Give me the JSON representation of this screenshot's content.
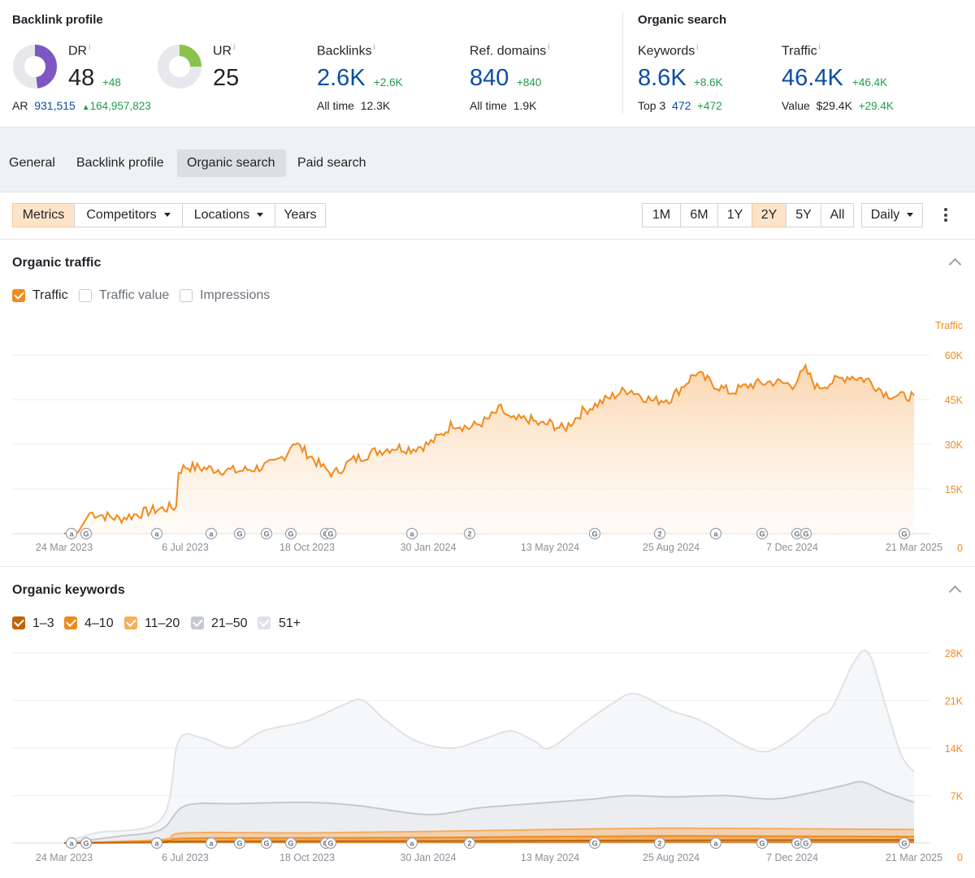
{
  "backlink_profile": {
    "title": "Backlink profile",
    "dr": {
      "label": "DR",
      "info": "i",
      "value": "48",
      "delta": "+48",
      "fraction": 0.48,
      "color": "#7e57c2"
    },
    "ur": {
      "label": "UR",
      "info": "i",
      "value": "25",
      "fraction": 0.25,
      "color": "#8bc34a"
    },
    "ar": {
      "label": "AR",
      "value": "931,515",
      "delta": "164,957,823"
    },
    "backlinks": {
      "label": "Backlinks",
      "info": "i",
      "value": "2.6K",
      "delta": "+2.6K",
      "sub_label": "All time",
      "sub_value": "12.3K"
    },
    "ref_domains": {
      "label": "Ref. domains",
      "info": "i",
      "value": "840",
      "delta": "+840",
      "sub_label": "All time",
      "sub_value": "1.9K"
    }
  },
  "organic_search": {
    "title": "Organic search",
    "keywords": {
      "label": "Keywords",
      "info": "i",
      "value": "8.6K",
      "delta": "+8.6K",
      "sub_label": "Top 3",
      "sub_value": "472",
      "sub_delta": "+472"
    },
    "traffic": {
      "label": "Traffic",
      "info": "i",
      "value": "46.4K",
      "delta": "+46.4K",
      "sub_label": "Value",
      "sub_value": "$29.4K",
      "sub_delta": "+29.4K"
    }
  },
  "tabs": [
    "General",
    "Backlink profile",
    "Organic search",
    "Paid search"
  ],
  "active_tab": "Organic search",
  "toolbar": {
    "metrics": "Metrics",
    "competitors": "Competitors",
    "locations": "Locations",
    "years": "Years",
    "ranges": [
      "1M",
      "6M",
      "1Y",
      "2Y",
      "5Y",
      "All"
    ],
    "active_range": "2Y",
    "interval": "Daily"
  },
  "organic_traffic": {
    "title": "Organic traffic",
    "checks": [
      {
        "label": "Traffic",
        "checked": true,
        "color": "#f28a1e"
      },
      {
        "label": "Traffic value",
        "checked": false
      },
      {
        "label": "Impressions",
        "checked": false
      }
    ]
  },
  "organic_keywords": {
    "title": "Organic keywords",
    "checks": [
      {
        "label": "1–3",
        "checked": true,
        "color": "#c0650c"
      },
      {
        "label": "4–10",
        "checked": true,
        "color": "#f08a1c"
      },
      {
        "label": "11–20",
        "checked": true,
        "color": "#f7ad5e"
      },
      {
        "label": "21–50",
        "checked": true,
        "color": "#c4c9d1"
      },
      {
        "label": "51+",
        "checked": true,
        "color": "#dfe2e7"
      }
    ]
  },
  "x_ticks": [
    "24 Mar 2023",
    "6 Jul 2023",
    "18 Oct 2023",
    "30 Jan 2024",
    "13 May 2024",
    "25 Aug 2024",
    "7 Dec 2024",
    "21 Mar 2025"
  ],
  "markers": [
    "a",
    "G",
    "a",
    "a",
    "G",
    "G",
    "G",
    "G",
    "G",
    "a",
    "2",
    "G",
    "2",
    "a",
    "G",
    "G",
    "G",
    "G"
  ],
  "chart_data": [
    {
      "type": "area",
      "title": "Organic traffic",
      "series": [
        {
          "name": "Traffic",
          "color": "#f28a1e",
          "points": [
            [
              "2023-03-24",
              0
            ],
            [
              "2023-04-05",
              500
            ],
            [
              "2023-04-15",
              7000
            ],
            [
              "2023-04-28",
              6000
            ],
            [
              "2023-05-10",
              5000
            ],
            [
              "2023-05-25",
              6500
            ],
            [
              "2023-06-10",
              8000
            ],
            [
              "2023-06-28",
              9000
            ],
            [
              "2023-06-30",
              21000
            ],
            [
              "2023-07-06",
              22500
            ],
            [
              "2023-07-20",
              22000
            ],
            [
              "2023-08-05",
              21500
            ],
            [
              "2023-08-20",
              21000
            ],
            [
              "2023-09-05",
              22000
            ],
            [
              "2023-09-20",
              23500
            ],
            [
              "2023-10-01",
              27000
            ],
            [
              "2023-10-06",
              31000
            ],
            [
              "2023-10-18",
              27000
            ],
            [
              "2023-11-01",
              22000
            ],
            [
              "2023-11-10",
              20000
            ],
            [
              "2023-11-25",
              24500
            ],
            [
              "2023-12-15",
              27500
            ],
            [
              "2024-01-01",
              29000
            ],
            [
              "2024-01-15",
              28500
            ],
            [
              "2024-01-30",
              30000
            ],
            [
              "2024-02-10",
              33000
            ],
            [
              "2024-02-20",
              37000
            ],
            [
              "2024-03-05",
              35500
            ],
            [
              "2024-03-20",
              38000
            ],
            [
              "2024-04-01",
              42000
            ],
            [
              "2024-04-10",
              38000
            ],
            [
              "2024-04-25",
              38500
            ],
            [
              "2024-05-05",
              36500
            ],
            [
              "2024-05-13",
              37000
            ],
            [
              "2024-05-25",
              35000
            ],
            [
              "2024-06-10",
              41000
            ],
            [
              "2024-06-25",
              44000
            ],
            [
              "2024-07-10",
              47000
            ],
            [
              "2024-07-20",
              48500
            ],
            [
              "2024-08-01",
              46000
            ],
            [
              "2024-08-10",
              44500
            ],
            [
              "2024-08-25",
              45500
            ],
            [
              "2024-09-05",
              50000
            ],
            [
              "2024-09-15",
              54000
            ],
            [
              "2024-10-01",
              50000
            ],
            [
              "2024-10-15",
              47500
            ],
            [
              "2024-11-01",
              50000
            ],
            [
              "2024-11-20",
              51000
            ],
            [
              "2024-12-07",
              50000
            ],
            [
              "2024-12-18",
              55000
            ],
            [
              "2024-12-28",
              49000
            ],
            [
              "2025-01-10",
              51000
            ],
            [
              "2025-01-25",
              53000
            ],
            [
              "2025-02-10",
              51500
            ],
            [
              "2025-02-25",
              47000
            ],
            [
              "2025-03-10",
              46000
            ],
            [
              "2025-03-21",
              46400
            ]
          ]
        }
      ],
      "x_ticks": [
        "24 Mar 2023",
        "6 Jul 2023",
        "18 Oct 2023",
        "30 Jan 2024",
        "13 May 2024",
        "25 Aug 2024",
        "7 Dec 2024",
        "21 Mar 2025"
      ],
      "y_ticks": [
        "0",
        "15K",
        "30K",
        "45K",
        "60K"
      ],
      "ylabel": "Traffic",
      "ylim": [
        0,
        60000
      ],
      "grid": true
    },
    {
      "type": "area",
      "title": "Organic keywords",
      "series": [
        {
          "name": "51+",
          "color": "#dfe2e7",
          "points": [
            [
              "2023-03-24",
              0
            ],
            [
              "2023-04-20",
              1500
            ],
            [
              "2023-06-15",
              3500
            ],
            [
              "2023-06-30",
              15000
            ],
            [
              "2023-07-20",
              15500
            ],
            [
              "2023-08-15",
              14000
            ],
            [
              "2023-09-10",
              16500
            ],
            [
              "2023-10-18",
              18000
            ],
            [
              "2023-11-20",
              20500
            ],
            [
              "2023-12-05",
              21000
            ],
            [
              "2023-12-25",
              18000
            ],
            [
              "2024-01-20",
              15000
            ],
            [
              "2024-02-20",
              14000
            ],
            [
              "2024-03-20",
              15500
            ],
            [
              "2024-04-10",
              16500
            ],
            [
              "2024-04-30",
              15000
            ],
            [
              "2024-05-13",
              14000
            ],
            [
              "2024-06-10",
              17500
            ],
            [
              "2024-07-05",
              20500
            ],
            [
              "2024-07-25",
              22000
            ],
            [
              "2024-08-25",
              19500
            ],
            [
              "2024-09-20",
              18000
            ],
            [
              "2024-10-25",
              14500
            ],
            [
              "2024-11-15",
              13500
            ],
            [
              "2024-12-07",
              15500
            ],
            [
              "2024-12-28",
              18500
            ],
            [
              "2025-01-10",
              20000
            ],
            [
              "2025-01-28",
              26500
            ],
            [
              "2025-02-10",
              28000
            ],
            [
              "2025-02-25",
              20000
            ],
            [
              "2025-03-10",
              13000
            ],
            [
              "2025-03-21",
              10500
            ]
          ]
        },
        {
          "name": "21–50",
          "color": "#c4c9d1",
          "points": [
            [
              "2023-03-24",
              0
            ],
            [
              "2023-05-10",
              1000
            ],
            [
              "2023-06-15",
              2000
            ],
            [
              "2023-07-06",
              5500
            ],
            [
              "2023-08-20",
              5800
            ],
            [
              "2023-10-18",
              6000
            ],
            [
              "2023-12-01",
              5500
            ],
            [
              "2024-01-30",
              4200
            ],
            [
              "2024-03-15",
              5200
            ],
            [
              "2024-05-13",
              6000
            ],
            [
              "2024-06-20",
              6500
            ],
            [
              "2024-07-20",
              7000
            ],
            [
              "2024-08-25",
              6800
            ],
            [
              "2024-10-10",
              7000
            ],
            [
              "2024-11-20",
              6500
            ],
            [
              "2024-12-25",
              7500
            ],
            [
              "2025-01-20",
              8500
            ],
            [
              "2025-02-05",
              9000
            ],
            [
              "2025-02-25",
              7500
            ],
            [
              "2025-03-21",
              6000
            ]
          ]
        },
        {
          "name": "11–20",
          "color": "#f7ad5e",
          "points": [
            [
              "2023-03-24",
              0
            ],
            [
              "2023-06-15",
              500
            ],
            [
              "2023-07-06",
              1500
            ],
            [
              "2023-10-18",
              1500
            ],
            [
              "2024-01-30",
              1700
            ],
            [
              "2024-05-13",
              2000
            ],
            [
              "2024-08-25",
              2200
            ],
            [
              "2024-12-07",
              2100
            ],
            [
              "2025-03-21",
              2000
            ]
          ]
        },
        {
          "name": "4–10",
          "color": "#f08a1c",
          "points": [
            [
              "2023-03-24",
              0
            ],
            [
              "2023-06-15",
              300
            ],
            [
              "2023-07-06",
              700
            ],
            [
              "2023-10-18",
              750
            ],
            [
              "2024-01-30",
              800
            ],
            [
              "2024-05-13",
              950
            ],
            [
              "2024-08-25",
              1050
            ],
            [
              "2024-12-07",
              1000
            ],
            [
              "2025-03-21",
              950
            ]
          ]
        },
        {
          "name": "1–3",
          "color": "#c0650c",
          "points": [
            [
              "2023-03-24",
              0
            ],
            [
              "2023-06-15",
              100
            ],
            [
              "2023-07-06",
              250
            ],
            [
              "2024-01-30",
              300
            ],
            [
              "2024-08-25",
              400
            ],
            [
              "2025-03-21",
              472
            ]
          ]
        }
      ],
      "x_ticks": [
        "24 Mar 2023",
        "6 Jul 2023",
        "18 Oct 2023",
        "30 Jan 2024",
        "13 May 2024",
        "25 Aug 2024",
        "7 Dec 2024",
        "21 Mar 2025"
      ],
      "y_ticks": [
        "0",
        "7K",
        "14K",
        "21K",
        "28K"
      ],
      "ylim": [
        0,
        28000
      ],
      "grid": true
    }
  ]
}
